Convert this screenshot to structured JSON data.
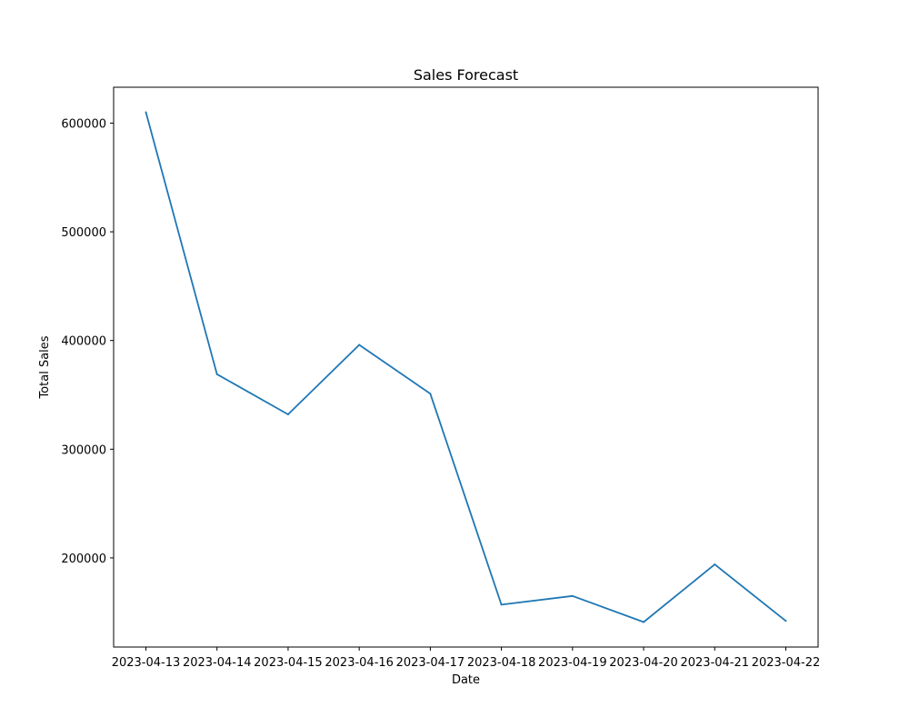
{
  "chart_data": {
    "type": "line",
    "title": "Sales Forecast",
    "xlabel": "Date",
    "ylabel": "Total Sales",
    "x": [
      "2023-04-13",
      "2023-04-14",
      "2023-04-15",
      "2023-04-16",
      "2023-04-17",
      "2023-04-18",
      "2023-04-19",
      "2023-04-20",
      "2023-04-21",
      "2023-04-22"
    ],
    "series": [
      {
        "values": [
          610000,
          369000,
          332000,
          396000,
          351000,
          157000,
          165000,
          141000,
          194000,
          142000
        ],
        "color": "#1f77b4"
      }
    ],
    "ylim": [
      118000,
      633000
    ],
    "yticks": [
      200000,
      300000,
      400000,
      500000,
      600000
    ],
    "ytick_labels": [
      "200000",
      "300000",
      "400000",
      "500000",
      "600000"
    ],
    "grid": false,
    "legend": "none"
  }
}
